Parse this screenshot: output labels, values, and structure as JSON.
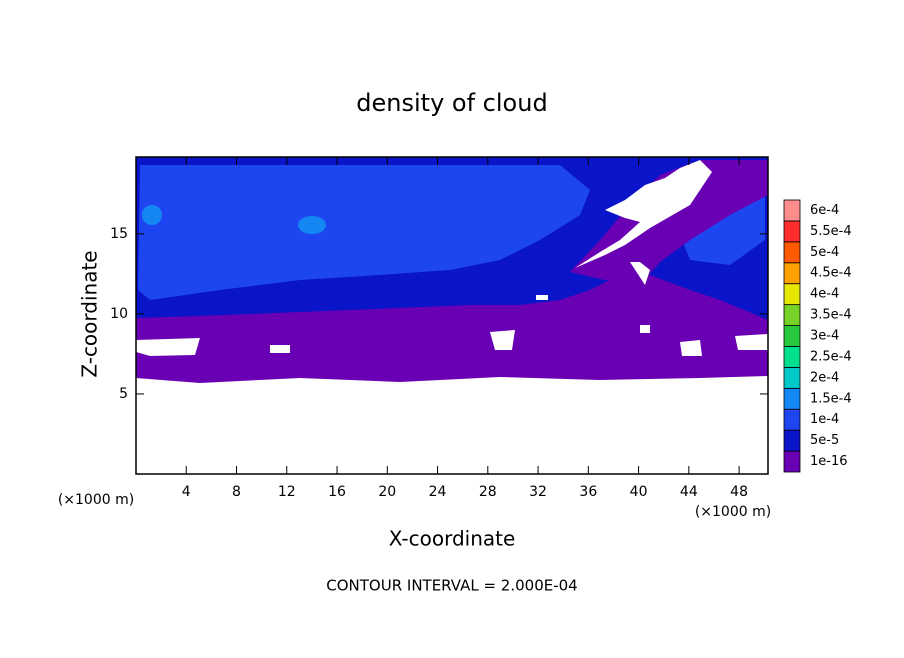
{
  "chart_data": {
    "type": "contour",
    "title": "density of cloud",
    "x_label": "X-coordinate",
    "y_label": "Z-coordinate",
    "x_unit_label": "(×1000 m)",
    "y_unit_label": "(×1000 m)",
    "footer": "CONTOUR INTERVAL = 2.000E-04",
    "xlim": [
      0,
      50.3
    ],
    "ylim": [
      0,
      19.8
    ],
    "xticks": [
      4,
      8,
      12,
      16,
      20,
      24,
      28,
      32,
      36,
      40,
      44,
      48
    ],
    "yticks": [
      5,
      10,
      15
    ],
    "colorbar": {
      "levels": [
        {
          "value": 1e-16,
          "label": "1e-16"
        },
        {
          "value": 5e-05,
          "label": "5e-5"
        },
        {
          "value": 0.0001,
          "label": "1e-4"
        },
        {
          "value": 0.00015,
          "label": "1.5e-4"
        },
        {
          "value": 0.0002,
          "label": "2e-4"
        },
        {
          "value": 0.00025,
          "label": "2.5e-4"
        },
        {
          "value": 0.0003,
          "label": "3e-4"
        },
        {
          "value": 0.00035,
          "label": "3.5e-4"
        },
        {
          "value": 0.0004,
          "label": "4e-4"
        },
        {
          "value": 0.00045,
          "label": "4.5e-4"
        },
        {
          "value": 0.0005,
          "label": "5e-4"
        },
        {
          "value": 0.00055,
          "label": "5.5e-4"
        },
        {
          "value": 0.0006,
          "label": "6e-4"
        }
      ],
      "colors": [
        "#6a00b4",
        "#0a14c8",
        "#1e46f0",
        "#1487f5",
        "#00c8c8",
        "#00e08c",
        "#28c83c",
        "#78d228",
        "#e6e600",
        "#ffa000",
        "#ff5a00",
        "#ff2d2d",
        "#ff8c8c"
      ]
    }
  }
}
